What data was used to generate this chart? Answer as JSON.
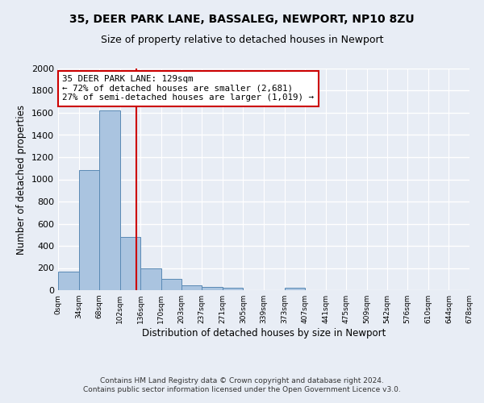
{
  "title1": "35, DEER PARK LANE, BASSALEG, NEWPORT, NP10 8ZU",
  "title2": "Size of property relative to detached houses in Newport",
  "xlabel": "Distribution of detached houses by size in Newport",
  "ylabel": "Number of detached properties",
  "footnote1": "Contains HM Land Registry data © Crown copyright and database right 2024.",
  "footnote2": "Contains public sector information licensed under the Open Government Licence v3.0.",
  "annotation_line1": "35 DEER PARK LANE: 129sqm",
  "annotation_line2": "← 72% of detached houses are smaller (2,681)",
  "annotation_line3": "27% of semi-detached houses are larger (1,019) →",
  "bar_edges": [
    0,
    34,
    68,
    102,
    136,
    170,
    203,
    237,
    271,
    305,
    339,
    373,
    407,
    441,
    475,
    509,
    542,
    576,
    610,
    644,
    678
  ],
  "bar_heights": [
    165,
    1085,
    1625,
    480,
    200,
    100,
    45,
    30,
    20,
    0,
    0,
    20,
    0,
    0,
    0,
    0,
    0,
    0,
    0,
    0
  ],
  "bar_color": "#aac4e0",
  "bar_edgecolor": "#5a8ab5",
  "property_line_x": 129,
  "property_line_color": "#cc0000",
  "ylim": [
    0,
    2000
  ],
  "yticks": [
    0,
    200,
    400,
    600,
    800,
    1000,
    1200,
    1400,
    1600,
    1800,
    2000
  ],
  "bg_color": "#e8edf5",
  "plot_bg_color": "#e8edf5",
  "grid_color": "white",
  "annotation_box_facecolor": "white",
  "annotation_box_edgecolor": "#cc0000"
}
